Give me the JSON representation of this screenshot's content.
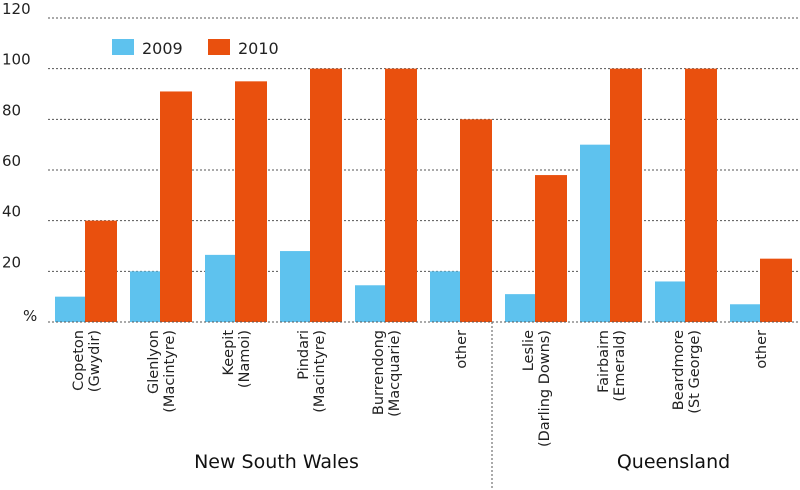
{
  "chart_data": {
    "type": "bar",
    "y_unit_label": "%",
    "ylim": [
      0,
      120
    ],
    "y_ticks": [
      "20",
      "40",
      "60",
      "80",
      "100",
      "120"
    ],
    "grid": true,
    "legend_placement": "top-left",
    "colors": {
      "2009": "#5ec2ee",
      "2010": "#e9500e"
    },
    "categories": [
      [
        "Copeton",
        "(Gwydir)"
      ],
      [
        "Glenlyon",
        "(Macintyre)"
      ],
      [
        "Keepit",
        "(Namoi)"
      ],
      [
        "Pindari",
        "(Macintyre)"
      ],
      [
        "Burrendong",
        "(Macquarie)"
      ],
      [
        "other"
      ],
      [
        "Leslie",
        "(Darling Downs)"
      ],
      [
        "Fairbairn",
        "(Emerald)"
      ],
      [
        "Beardmore",
        "(St George)"
      ],
      [
        "other"
      ]
    ],
    "series": [
      {
        "name": "2009",
        "values": [
          10,
          20,
          26.5,
          28,
          14.5,
          20,
          11,
          70,
          16,
          7
        ]
      },
      {
        "name": "2010",
        "values": [
          40,
          91,
          95,
          100,
          100,
          80,
          58,
          100,
          100,
          25
        ]
      }
    ],
    "groups": [
      {
        "label": "New South Wales",
        "count": 6
      },
      {
        "label": "Queensland",
        "count": 4
      }
    ]
  }
}
